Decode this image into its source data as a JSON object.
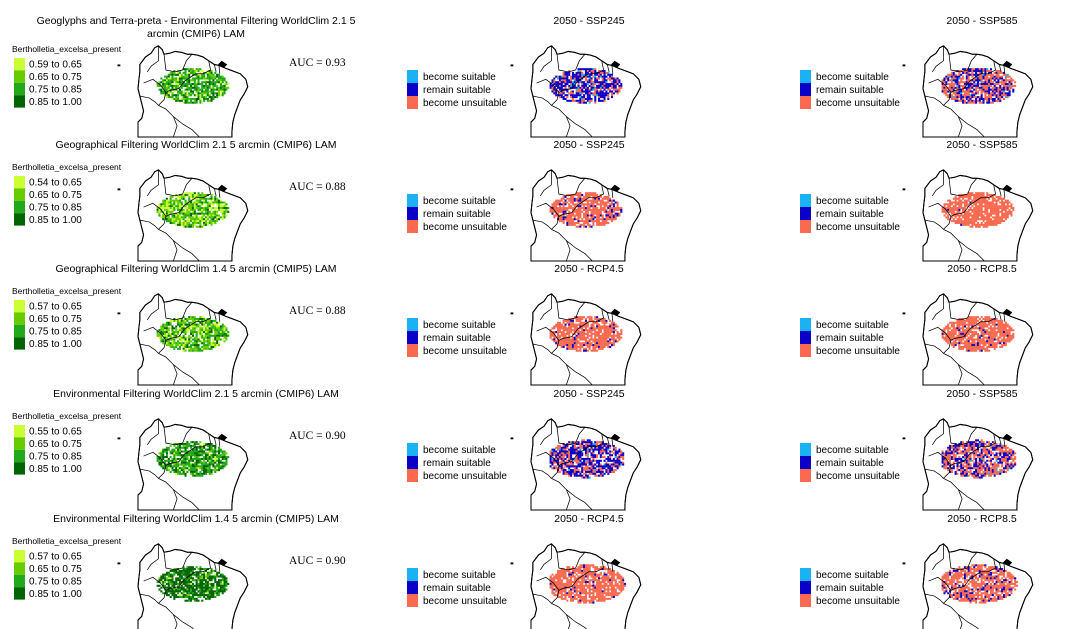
{
  "colors": {
    "present_bins": [
      "#ccff33",
      "#66cc00",
      "#22a81b",
      "#006400"
    ],
    "become_suitable": "#1ab2f2",
    "remain_suitable": "#0b00c8",
    "become_unsuitable": "#f96a50"
  },
  "change_legend": [
    "become suitable",
    "remain suitable",
    "become unsuitable"
  ],
  "rows": [
    {
      "title_lines": [
        "Geoglyphs and Terra-preta - Environmental Filtering WorldClim 2.1 5",
        "arcmin (CMIP6) LAM"
      ],
      "legend_title": "Bertholletia_excelsa_present",
      "bins": [
        "0.59 to 0.65",
        "0.65 to 0.75",
        "0.75 to 0.85",
        "0.85 to 1.00"
      ],
      "auc": "AUC = 0.93",
      "present_mix": [
        0.1,
        0.2,
        0.5,
        0.2
      ],
      "future": [
        {
          "title": "2050 - SSP245",
          "mix": [
            0.06,
            0.64,
            0.3
          ],
          "spread": 0.55
        },
        {
          "title": "2050 - SSP585",
          "mix": [
            0.05,
            0.37,
            0.58
          ],
          "spread": 0.7
        }
      ]
    },
    {
      "title_lines": [
        "Geographical Filtering WorldClim 2.1 5 arcmin (CMIP6) LAM"
      ],
      "legend_title": "Bertholletia_excelsa_present",
      "bins": [
        "0.54 to 0.65",
        "0.65 to 0.75",
        "0.75 to 0.85",
        "0.85 to 1.00"
      ],
      "auc": "AUC = 0.88",
      "present_mix": [
        0.3,
        0.35,
        0.25,
        0.1
      ],
      "future": [
        {
          "title": "2050 - SSP245",
          "mix": [
            0.0,
            0.18,
            0.82
          ],
          "spread": 0.55
        },
        {
          "title": "2050 - SSP585",
          "mix": [
            0.0,
            0.01,
            0.99
          ],
          "spread": 0.55
        }
      ]
    },
    {
      "title_lines": [
        "Geographical Filtering WorldClim 1.4 5 arcmin (CMIP5) LAM"
      ],
      "legend_title": "Bertholletia_excelsa_present",
      "bins": [
        "0.57 to 0.65",
        "0.65 to 0.75",
        "0.75 to 0.85",
        "0.85 to 1.00"
      ],
      "auc": "AUC = 0.88",
      "present_mix": [
        0.25,
        0.35,
        0.28,
        0.12
      ],
      "future": [
        {
          "title": "2050 - RCP4.5",
          "mix": [
            0.0,
            0.08,
            0.92
          ],
          "spread": 0.6
        },
        {
          "title": "2050 - RCP8.5",
          "mix": [
            0.0,
            0.05,
            0.95
          ],
          "spread": 0.6
        }
      ]
    },
    {
      "title_lines": [
        "Environmental Filtering WorldClim 2.1 5 arcmin (CMIP6) LAM"
      ],
      "legend_title": "Bertholletia_excelsa_present",
      "bins": [
        "0.55 to 0.65",
        "0.65 to 0.75",
        "0.75 to 0.85",
        "0.85 to 1.00"
      ],
      "auc": "AUC = 0.90",
      "present_mix": [
        0.05,
        0.15,
        0.5,
        0.3
      ],
      "future": [
        {
          "title": "2050 - SSP245",
          "mix": [
            0.04,
            0.56,
            0.4
          ],
          "spread": 0.75
        },
        {
          "title": "2050 - SSP585",
          "mix": [
            0.03,
            0.44,
            0.53
          ],
          "spread": 0.75
        }
      ]
    },
    {
      "title_lines": [
        "Environmental Filtering WorldClim 1.4 5 arcmin (CMIP5) LAM"
      ],
      "legend_title": "Bertholletia_excelsa_present",
      "bins": [
        "0.57 to 0.65",
        "0.65 to 0.75",
        "0.75 to 0.85",
        "0.85 to 1.00"
      ],
      "auc": "AUC = 0.90",
      "present_mix": [
        0.02,
        0.1,
        0.2,
        0.68
      ],
      "future": [
        {
          "title": "2050 - RCP4.5",
          "mix": [
            0.0,
            0.06,
            0.94
          ],
          "spread": 0.8
        },
        {
          "title": "2050 - RCP8.5",
          "mix": [
            0.0,
            0.18,
            0.82
          ],
          "spread": 0.8
        }
      ]
    }
  ]
}
